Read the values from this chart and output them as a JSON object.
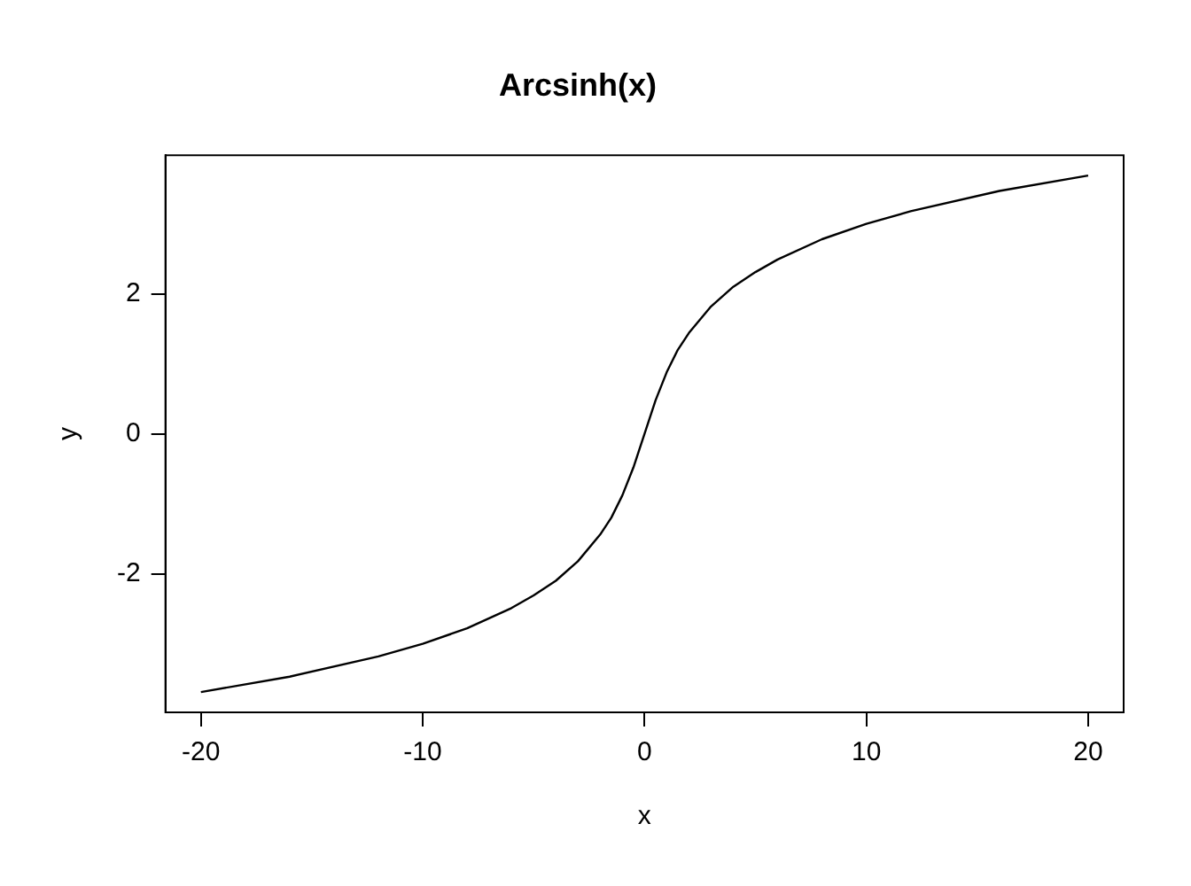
{
  "chart_data": {
    "type": "line",
    "title": "Arcsinh(x)",
    "xlabel": "x",
    "ylabel": "y",
    "x": [
      -20,
      -16,
      -12,
      -10,
      -8,
      -6,
      -5,
      -4,
      -3,
      -2,
      -1.5,
      -1,
      -0.5,
      0,
      0.5,
      1,
      1.5,
      2,
      3,
      4,
      5,
      6,
      8,
      10,
      12,
      16,
      20
    ],
    "values": [
      -3.69,
      -3.47,
      -3.18,
      -3.0,
      -2.78,
      -2.49,
      -2.31,
      -2.1,
      -1.82,
      -1.44,
      -1.2,
      -0.88,
      -0.48,
      0,
      0.48,
      0.88,
      1.2,
      1.44,
      1.82,
      2.1,
      2.31,
      2.49,
      2.78,
      3.0,
      3.18,
      3.47,
      3.69
    ],
    "color": "#000000",
    "marker": "none",
    "line_style": "solid",
    "grid": false,
    "legend": false,
    "xlim": [
      -21.6,
      21.6
    ],
    "ylim": [
      -3.98,
      3.98
    ],
    "xticks": [
      -20,
      -10,
      0,
      10,
      20
    ],
    "yticks": [
      -2,
      0,
      2
    ]
  }
}
